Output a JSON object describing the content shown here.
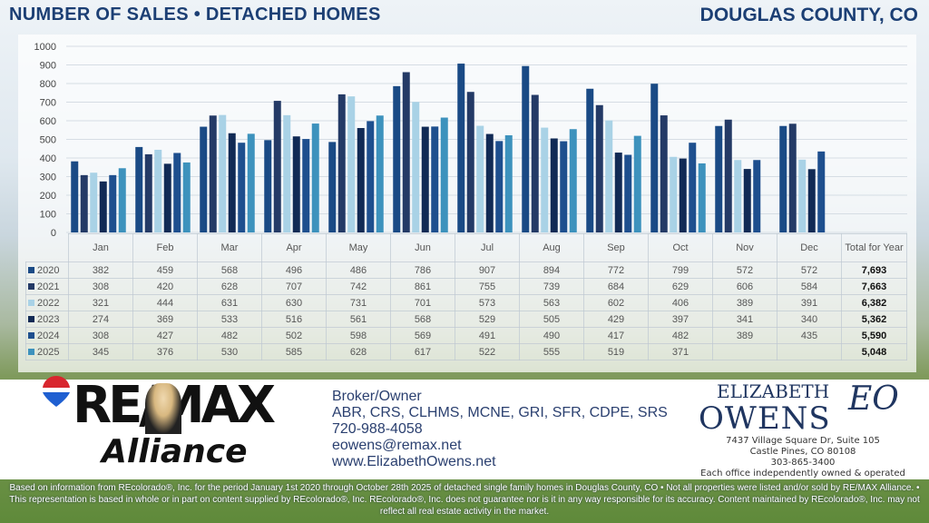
{
  "header": {
    "title": "NUMBER OF SALES • DETACHED HOMES",
    "region": "DOUGLAS COUNTY, CO"
  },
  "chart_data": {
    "type": "bar",
    "categories": [
      "Jan",
      "Feb",
      "Mar",
      "Apr",
      "May",
      "Jun",
      "Jul",
      "Aug",
      "Sep",
      "Oct",
      "Nov",
      "Dec"
    ],
    "total_header": "Total for Year",
    "ylim": [
      0,
      1000
    ],
    "yticks": [
      0,
      100,
      200,
      300,
      400,
      500,
      600,
      700,
      800,
      900,
      1000
    ],
    "grid": true,
    "legend": "table-left",
    "series": [
      {
        "name": "2020",
        "color": "#1a4a85",
        "values": [
          382,
          459,
          568,
          496,
          486,
          786,
          907,
          894,
          772,
          799,
          572,
          572
        ],
        "total": "7,693"
      },
      {
        "name": "2021",
        "color": "#243a66",
        "values": [
          308,
          420,
          628,
          707,
          742,
          861,
          755,
          739,
          684,
          629,
          606,
          584
        ],
        "total": "7,663"
      },
      {
        "name": "2022",
        "color": "#a9d2e6",
        "values": [
          321,
          444,
          631,
          630,
          731,
          701,
          573,
          563,
          602,
          406,
          389,
          391
        ],
        "total": "6,382"
      },
      {
        "name": "2023",
        "color": "#112a55",
        "values": [
          274,
          369,
          533,
          516,
          561,
          568,
          529,
          505,
          429,
          397,
          341,
          340
        ],
        "total": "5,362"
      },
      {
        "name": "2024",
        "color": "#1e4f8e",
        "values": [
          308,
          427,
          482,
          502,
          598,
          569,
          491,
          490,
          417,
          482,
          389,
          435
        ],
        "total": "5,590"
      },
      {
        "name": "2025",
        "color": "#3d92bd",
        "values": [
          345,
          376,
          530,
          585,
          628,
          617,
          522,
          555,
          519,
          371,
          null,
          null
        ],
        "total": "5,048"
      }
    ]
  },
  "brand": {
    "logo": "RE/MAX Alliance",
    "contact": [
      "Broker/Owner",
      "ABR, CRS, CLHMS, MCNE, GRI, SFR, CDPE, SRS",
      "720-988-4058",
      "eowens@remax.net",
      "www.ElizabethOwens.net"
    ],
    "logo2_first": "ELIZABETH",
    "logo2_last": "OWENS",
    "logo2_mark": "EO",
    "address": [
      "7437 Village Square Dr, Suite 105",
      "Castle Pines, CO 80108",
      "303-865-3400",
      "Each office independently owned & operated"
    ]
  },
  "disclaimer": "Based on information from REcolorado®, Inc. for the period January 1st 2020 through October 28th 2025 of detached single family homes in Douglas County, CO • Not all properties were listed and/or sold by RE/MAX Alliance. • This representation is based in whole or in part on content supplied by REcolorado®, Inc. REcolorado®, Inc. does not guarantee nor is it in any way responsible for its accuracy. Content maintained by REcolorado®, Inc. may not reflect all real estate activity in the market."
}
